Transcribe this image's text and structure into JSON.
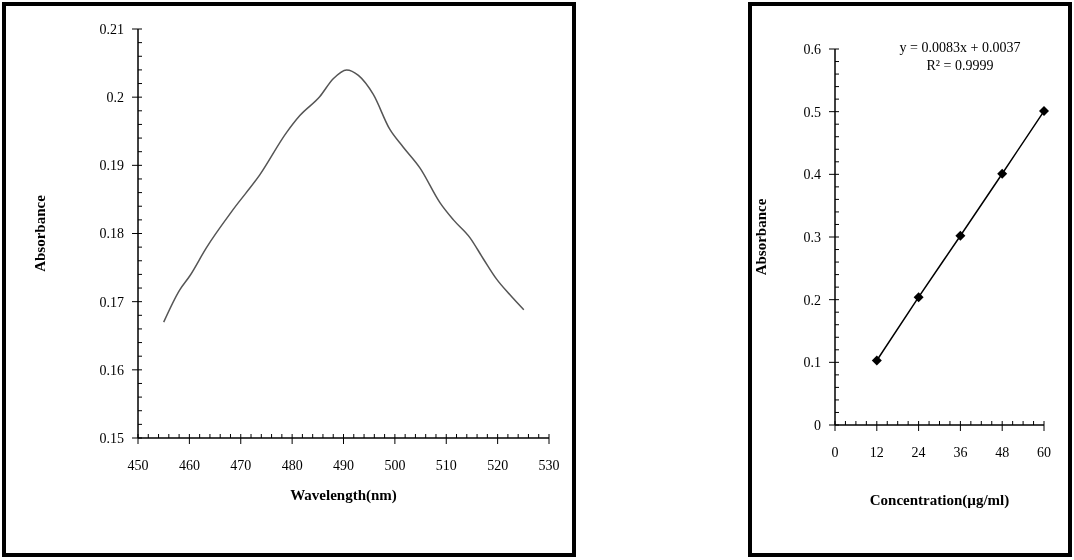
{
  "chart_data": [
    {
      "type": "line",
      "xlabel": "Wavelength(nm)",
      "ylabel": "Absorbance",
      "xlim": [
        450,
        530
      ],
      "ylim": [
        0.15,
        0.21
      ],
      "xticks": [
        450,
        {
          "value": 452,
          "label": null
        },
        {
          "value": 454,
          "label": null
        },
        {
          "value": 456,
          "label": null
        },
        {
          "value": 458,
          "label": null
        },
        460,
        {
          "value": 462,
          "label": null
        },
        {
          "value": 464,
          "label": null
        },
        {
          "value": 466,
          "label": null
        },
        {
          "value": 468,
          "label": null
        },
        470,
        {
          "value": 472,
          "label": null
        },
        {
          "value": 474,
          "label": null
        },
        {
          "value": 476,
          "label": null
        },
        {
          "value": 478,
          "label": null
        },
        480,
        {
          "value": 482,
          "label": null
        },
        {
          "value": 484,
          "label": null
        },
        {
          "value": 486,
          "label": null
        },
        {
          "value": 488,
          "label": null
        },
        490,
        {
          "value": 492,
          "label": null
        },
        {
          "value": 494,
          "label": null
        },
        {
          "value": 496,
          "label": null
        },
        {
          "value": 498,
          "label": null
        },
        500,
        {
          "value": 502,
          "label": null
        },
        {
          "value": 504,
          "label": null
        },
        {
          "value": 506,
          "label": null
        },
        {
          "value": 508,
          "label": null
        },
        510,
        {
          "value": 512,
          "label": null
        },
        {
          "value": 514,
          "label": null
        },
        {
          "value": 516,
          "label": null
        },
        {
          "value": 518,
          "label": null
        },
        520,
        {
          "value": 522,
          "label": null
        },
        {
          "value": 524,
          "label": null
        },
        {
          "value": 526,
          "label": null
        },
        {
          "value": 528,
          "label": null
        },
        530
      ],
      "yticks": [
        0.15,
        {
          "value": 0.152,
          "label": null
        },
        {
          "value": 0.154,
          "label": null
        },
        {
          "value": 0.156,
          "label": null
        },
        {
          "value": 0.158,
          "label": null
        },
        0.16,
        {
          "value": 0.162,
          "label": null
        },
        {
          "value": 0.164,
          "label": null
        },
        {
          "value": 0.166,
          "label": null
        },
        {
          "value": 0.168,
          "label": null
        },
        0.17,
        {
          "value": 0.172,
          "label": null
        },
        {
          "value": 0.174,
          "label": null
        },
        {
          "value": 0.176,
          "label": null
        },
        {
          "value": 0.178,
          "label": null
        },
        0.18,
        {
          "value": 0.182,
          "label": null
        },
        {
          "value": 0.184,
          "label": null
        },
        {
          "value": 0.186,
          "label": null
        },
        {
          "value": 0.188,
          "label": null
        },
        0.19,
        {
          "value": 0.192,
          "label": null
        },
        {
          "value": 0.194,
          "label": null
        },
        {
          "value": 0.196,
          "label": null
        },
        {
          "value": 0.198,
          "label": null
        },
        0.2,
        {
          "value": 0.202,
          "label": null
        },
        {
          "value": 0.204,
          "label": null
        },
        {
          "value": 0.206,
          "label": null
        },
        {
          "value": 0.208,
          "label": null
        },
        0.21
      ],
      "marker": "none",
      "line_style": "solid",
      "series": [
        {
          "color": "#555555",
          "x": [
            455,
            458.1,
            460.1,
            463.3,
            468.5,
            473.7,
            478.9,
            481.5,
            485.4,
            488,
            490.6,
            492.9,
            495.8,
            499,
            501.6,
            504.9,
            508.8,
            511.4,
            514.6,
            517.2,
            519.8,
            522.4,
            525.1
          ],
          "values": [
            0.167,
            0.1717,
            0.1738,
            0.1779,
            0.1835,
            0.1886,
            0.1948,
            0.1973,
            0.2001,
            0.2027,
            0.204,
            0.2032,
            0.2004,
            0.1953,
            0.1927,
            0.1896,
            0.1845,
            0.182,
            0.1794,
            0.1763,
            0.1733,
            0.171,
            0.1688
          ]
        }
      ]
    },
    {
      "type": "line",
      "xlabel": "Concentration(µg/ml)",
      "ylabel": "Absorbance",
      "xlim": [
        0,
        60
      ],
      "ylim": [
        0,
        0.6
      ],
      "xticks": [
        0,
        {
          "value": 3,
          "label": null
        },
        {
          "value": 6,
          "label": null
        },
        {
          "value": 9,
          "label": null
        },
        12,
        {
          "value": 15,
          "label": null
        },
        {
          "value": 18,
          "label": null
        },
        {
          "value": 21,
          "label": null
        },
        24,
        {
          "value": 27,
          "label": null
        },
        {
          "value": 30,
          "label": null
        },
        {
          "value": 33,
          "label": null
        },
        36,
        {
          "value": 39,
          "label": null
        },
        {
          "value": 42,
          "label": null
        },
        {
          "value": 45,
          "label": null
        },
        48,
        {
          "value": 51,
          "label": null
        },
        {
          "value": 54,
          "label": null
        },
        {
          "value": 57,
          "label": null
        },
        60
      ],
      "yticks": [
        0,
        {
          "value": 0.02,
          "label": null
        },
        {
          "value": 0.04,
          "label": null
        },
        {
          "value": 0.06,
          "label": null
        },
        {
          "value": 0.08,
          "label": null
        },
        0.1,
        {
          "value": 0.12,
          "label": null
        },
        {
          "value": 0.14,
          "label": null
        },
        {
          "value": 0.16,
          "label": null
        },
        {
          "value": 0.18,
          "label": null
        },
        0.2,
        {
          "value": 0.22,
          "label": null
        },
        {
          "value": 0.24,
          "label": null
        },
        {
          "value": 0.26,
          "label": null
        },
        {
          "value": 0.28,
          "label": null
        },
        0.3,
        {
          "value": 0.32,
          "label": null
        },
        {
          "value": 0.34,
          "label": null
        },
        {
          "value": 0.36,
          "label": null
        },
        {
          "value": 0.38,
          "label": null
        },
        0.4,
        {
          "value": 0.42,
          "label": null
        },
        {
          "value": 0.44,
          "label": null
        },
        {
          "value": 0.46,
          "label": null
        },
        {
          "value": 0.48,
          "label": null
        },
        0.5,
        {
          "value": 0.52,
          "label": null
        },
        {
          "value": 0.54,
          "label": null
        },
        {
          "value": 0.56,
          "label": null
        },
        {
          "value": 0.58,
          "label": null
        },
        0.6
      ],
      "marker": "diamond",
      "line_style": "solid",
      "annotations": [
        "y = 0.0083x + 0.0037",
        "R² = 0.9999"
      ],
      "series": [
        {
          "color": "#000000",
          "x": [
            12,
            24,
            36,
            48,
            60
          ],
          "values": [
            0.103,
            0.204,
            0.302,
            0.401,
            0.501
          ]
        }
      ]
    }
  ]
}
